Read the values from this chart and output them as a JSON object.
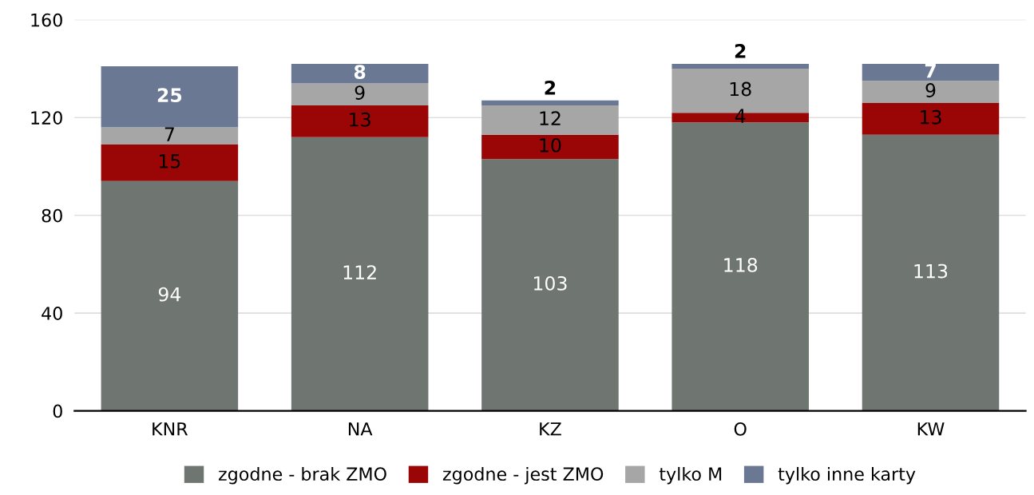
{
  "chart_data": {
    "type": "bar",
    "stacked": true,
    "categories": [
      "KNR",
      "NA",
      "KZ",
      "O",
      "KW"
    ],
    "series": [
      {
        "name": "zgodne - brak ZMO",
        "color": "#6f7571",
        "values": [
          94,
          112,
          103,
          118,
          113
        ]
      },
      {
        "name": "zgodne - jest ZMO",
        "color": "#990605",
        "values": [
          15,
          13,
          10,
          4,
          13
        ]
      },
      {
        "name": "tylko M",
        "color": "#a6a6a6",
        "values": [
          7,
          9,
          12,
          18,
          9
        ]
      },
      {
        "name": "tylko inne karty",
        "color": "#6a7894",
        "values": [
          25,
          8,
          2,
          2,
          7
        ]
      }
    ],
    "ylim": [
      0,
      160
    ],
    "yticks": [
      0,
      40,
      80,
      120,
      160
    ],
    "grid": "y",
    "legend": "bottom",
    "data_labels": true
  }
}
